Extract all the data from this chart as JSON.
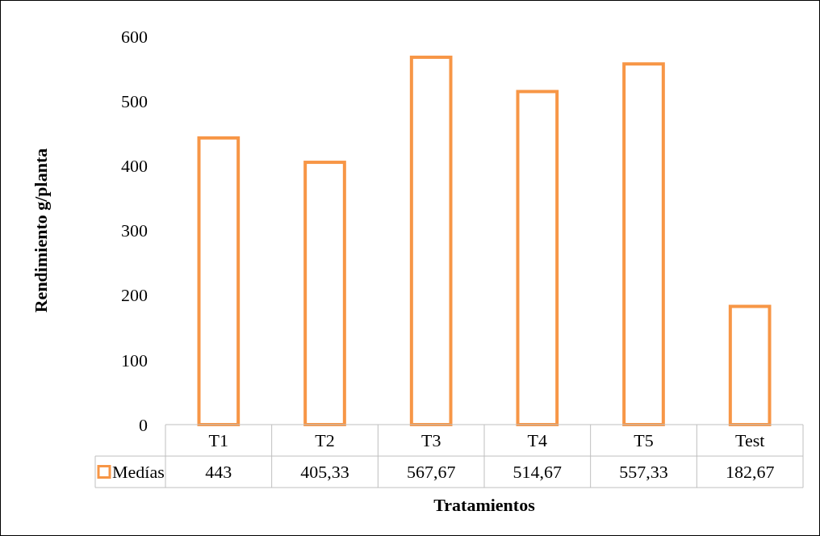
{
  "chart_data": {
    "type": "bar",
    "xlabel": "Tratamientos",
    "ylabel": "Rendimiento g/planta",
    "categories": [
      "T1",
      "T2",
      "T3",
      "T4",
      "T5",
      "Test"
    ],
    "series": [
      {
        "name": "Medías",
        "color": "#f79646",
        "values": [
          443,
          405.33,
          567.67,
          514.67,
          557.33,
          182.67
        ],
        "value_labels": [
          "443",
          "405,33",
          "567,67",
          "514,67",
          "557,33",
          "182,67"
        ]
      }
    ],
    "ylim": [
      0,
      600
    ],
    "yticks": [
      0,
      100,
      200,
      300,
      400,
      500,
      600
    ],
    "grid": false,
    "legend": "bottom"
  }
}
